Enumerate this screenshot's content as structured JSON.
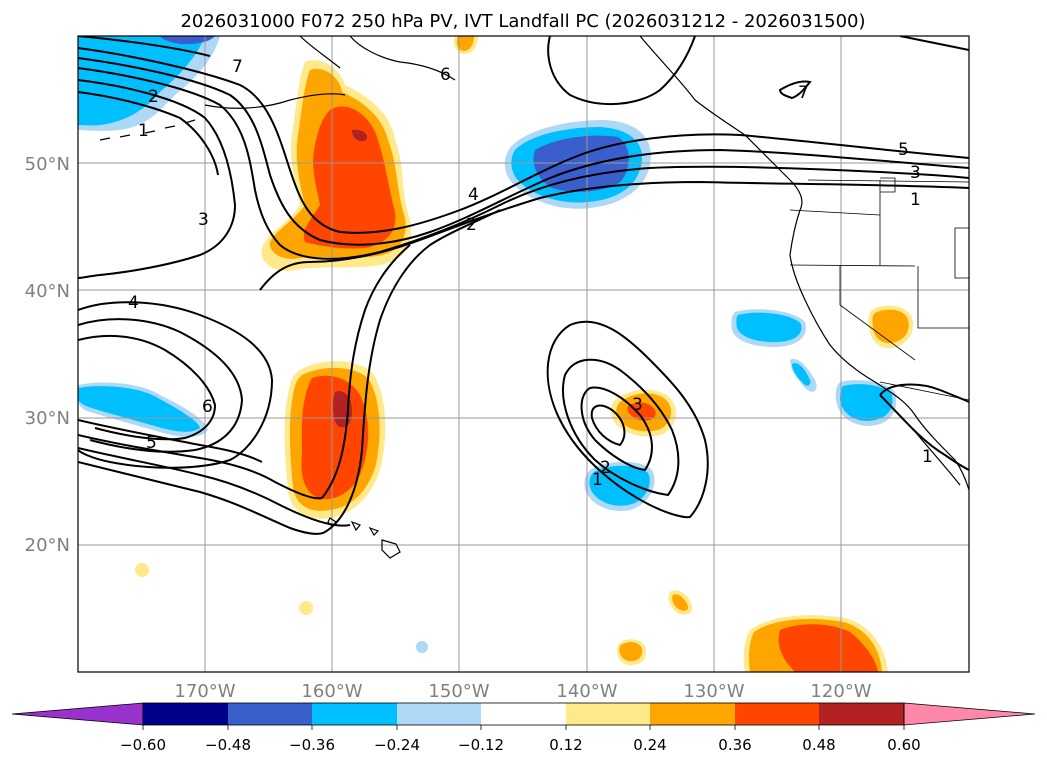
{
  "title": "2026031000 F072 250 hPa PV, IVT Landfall PC (2026031212 - 2026031500)",
  "map": {
    "lat_labels": [
      "50°N",
      "40°N",
      "30°N",
      "20°N"
    ],
    "lon_labels": [
      "170°W",
      "160°W",
      "150°W",
      "140°W",
      "130°W",
      "120°W"
    ],
    "gridlines": true,
    "land_color": "#ffffff",
    "contour_color": "#000000",
    "contour_labels": [
      {
        "text": "7"
      },
      {
        "text": "2"
      },
      {
        "text": "1"
      },
      {
        "text": "6"
      },
      {
        "text": "3"
      },
      {
        "text": "4"
      },
      {
        "text": "2"
      },
      {
        "text": "4"
      },
      {
        "text": "6"
      },
      {
        "text": "5"
      },
      {
        "text": "3"
      },
      {
        "text": "2"
      },
      {
        "text": "1"
      },
      {
        "text": "5"
      },
      {
        "text": "3"
      },
      {
        "text": "1"
      },
      {
        "text": "7"
      },
      {
        "text": "1"
      }
    ]
  },
  "colorbar": {
    "tick_labels": [
      "−0.60",
      "−0.48",
      "−0.36",
      "−0.24",
      "−0.12",
      "0.12",
      "0.24",
      "0.36",
      "0.48",
      "0.60"
    ],
    "colors": [
      "#9932cc",
      "#00008b",
      "#3a5fcd",
      "#00bfff",
      "#add8f6",
      "#ffffff",
      "#ffe98a",
      "#ffa500",
      "#ff4500",
      "#b22222",
      "#ff88a8"
    ]
  }
}
